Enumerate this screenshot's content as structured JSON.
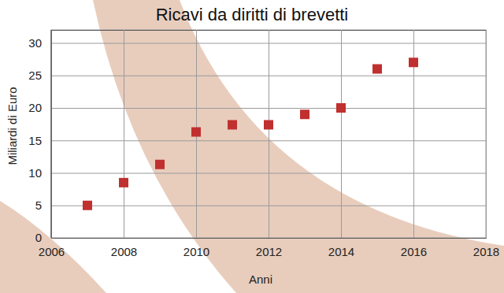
{
  "chart_data": {
    "type": "scatter",
    "title": "Ricavi da diritti di brevetti",
    "x_label": "Anni",
    "y_label": "Miliardi di Euro",
    "x": [
      2007,
      2008,
      2009,
      2010,
      2011,
      2012,
      2013,
      2014,
      2015,
      2016
    ],
    "values": [
      5,
      8.5,
      11.3,
      16.3,
      17.4,
      17.4,
      19,
      20,
      26,
      27
    ],
    "color": "#c0302f",
    "marker": "square",
    "xlim": [
      2006,
      2018
    ],
    "xticks": [
      2006,
      2008,
      2010,
      2012,
      2014,
      2016,
      2018
    ],
    "ylim": [
      0,
      32
    ],
    "yticks": [
      0,
      5,
      10,
      15,
      20,
      25,
      30
    ],
    "grid": true
  }
}
